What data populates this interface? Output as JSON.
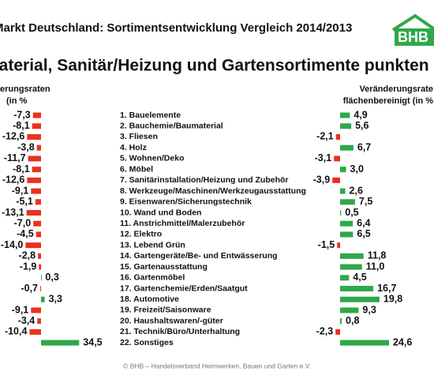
{
  "header": {
    "title": "Markt Deutschland: Sortimentsentwicklung Vergleich 2014/2013",
    "logo": "BHB",
    "headline": "material, Sanitär/Heizung und Gartensortimente punkten"
  },
  "chart_data": [
    {
      "type": "bar",
      "orientation": "horizontal",
      "axis_title": [
        "erungsraten",
        "(in %"
      ],
      "categories": [
        "1. Bauelemente",
        "2. Bauchemie/Baumaterial",
        "3. Fliesen",
        "4. Holz",
        "5. Wohnen/Deko",
        "6. Möbel",
        "7. Sanitärinstallation/Heizung und Zubehör",
        "8. Werkzeuge/Maschinen/Werkzeugausstattung",
        "9. Eisenwaren/Sicherungstechnik",
        "10. Wand und Boden",
        "11. Anstrichmittel/Malerzubehör",
        "12. Elektro",
        "13. Lebend Grün",
        "14. Gartengeräte/Be- und Entwässerung",
        "15. Gartenausstattung",
        "16. Gartenmöbel",
        "17. Gartenchemie/Erden/Saatgut",
        "18. Automotive",
        "19. Freizeit/Saisonware",
        "20. Haushaltswaren/-güter",
        "21. Technik/Büro/Unterhaltung",
        "22. Sonstiges"
      ],
      "values": [
        -7.3,
        -8.1,
        -12.6,
        -3.8,
        -11.7,
        -8.1,
        -12.6,
        -9.1,
        -5.1,
        -13.1,
        -7.0,
        -4.5,
        -14.0,
        -2.8,
        -1.9,
        0.3,
        -0.7,
        3.3,
        -9.1,
        -3.4,
        -10.4,
        34.5
      ],
      "value_labels": [
        "-7,3",
        "-8,1",
        "-12,6",
        "-3,8",
        "-11,7",
        "-8,1",
        "-12,6",
        "-9,1",
        "-5,1",
        "-13,1",
        "-7,0",
        "-4,5",
        "-14,0",
        "-2,8",
        "-1,9",
        "0,3",
        "-0,7",
        "3,3",
        "-9,1",
        "-3,4",
        "-10,4",
        "34,5"
      ],
      "color": "#2ea84a",
      "negative_color": "#e8321e",
      "xlim": [
        -35,
        35
      ]
    },
    {
      "type": "bar",
      "orientation": "horizontal",
      "axis_title": [
        "Veränderungsrate",
        "flächenbereinigt (in %"
      ],
      "values": [
        4.9,
        5.6,
        -2.1,
        6.7,
        -3.1,
        3.0,
        -3.9,
        2.6,
        7.5,
        0.5,
        6.4,
        6.5,
        -1.5,
        11.8,
        11.0,
        4.5,
        16.7,
        19.8,
        9.3,
        0.8,
        -2.3,
        24.6
      ],
      "value_labels": [
        "4,9",
        "5,6",
        "-2,1",
        "6,7",
        "-3,1",
        "3,0",
        "-3,9",
        "2,6",
        "7,5",
        "0,5",
        "6,4",
        "6,5",
        "-1,5",
        "11,8",
        "11,0",
        "4,5",
        "16,7",
        "19,8",
        "9,3",
        "0,8",
        "-2,3",
        "24,6"
      ],
      "color": "#2ea84a",
      "negative_color": "#e8321e",
      "xlim": [
        -25,
        25
      ]
    }
  ],
  "footer": "© BHB – Handelsverband Heimwerken, Bauen und Garten e.V."
}
